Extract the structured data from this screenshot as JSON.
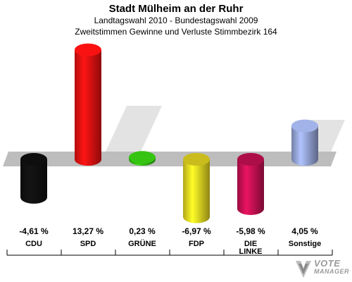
{
  "header": {
    "title": "Stadt Mülheim an der Ruhr",
    "subtitle": "Landtagswahl 2010 - Bundestagswahl 2009",
    "subtitle2": "Zweitstimmen Gewinne und Verluste Stimmbezirk 164"
  },
  "logo": {
    "line1": "VOTE",
    "line2": "MANAGER"
  },
  "chart_data": {
    "type": "bar",
    "title": "Stadt Mülheim an der Ruhr",
    "subtitle": "Landtagswahl 2010 - Bundestagswahl 2009 / Zweitstimmen Gewinne und Verluste Stimmbezirk 164",
    "categories": [
      "CDU",
      "SPD",
      "GRÜNE",
      "FDP",
      "DIE LINKE",
      "Sonstige"
    ],
    "values": [
      -4.61,
      13.27,
      0.23,
      -6.97,
      -5.98,
      4.05
    ],
    "value_labels": [
      "-4,61 %",
      "13,27 %",
      "0,23 %",
      "-6,97 %",
      "-5,98 %",
      "4,05 %"
    ],
    "colors": [
      "#111111",
      "#ee1111",
      "#33bb11",
      "#eedd22",
      "#cc1155",
      "#99aadd"
    ],
    "ylim": [
      -8,
      15
    ],
    "grid": false,
    "legend": "none"
  }
}
